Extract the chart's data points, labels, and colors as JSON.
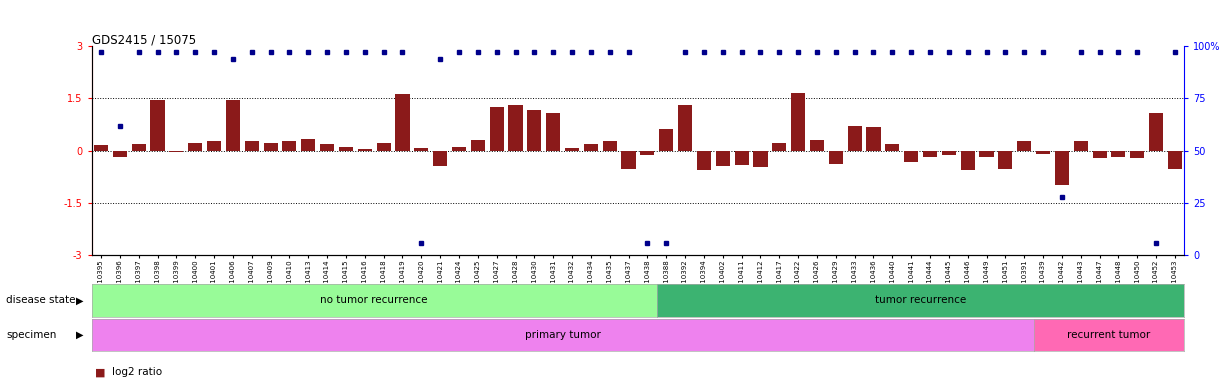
{
  "title": "GDS2415 / 15075",
  "samples": [
    "GSM110395",
    "GSM110396",
    "GSM110397",
    "GSM110398",
    "GSM110399",
    "GSM110400",
    "GSM110401",
    "GSM110406",
    "GSM110407",
    "GSM110409",
    "GSM110410",
    "GSM110413",
    "GSM110414",
    "GSM110415",
    "GSM110416",
    "GSM110418",
    "GSM110419",
    "GSM110420",
    "GSM110421",
    "GSM110424",
    "GSM110425",
    "GSM110427",
    "GSM110428",
    "GSM110430",
    "GSM110431",
    "GSM110432",
    "GSM110434",
    "GSM110435",
    "GSM110437",
    "GSM110438",
    "GSM110388",
    "GSM110392",
    "GSM110394",
    "GSM110402",
    "GSM110411",
    "GSM110412",
    "GSM110417",
    "GSM110422",
    "GSM110426",
    "GSM110429",
    "GSM110433",
    "GSM110436",
    "GSM110440",
    "GSM110441",
    "GSM110444",
    "GSM110445",
    "GSM110446",
    "GSM110449",
    "GSM110451",
    "GSM110391",
    "GSM110439",
    "GSM110442",
    "GSM110443",
    "GSM110447",
    "GSM110448",
    "GSM110450",
    "GSM110452",
    "GSM110453"
  ],
  "log2_ratio": [
    0.15,
    -0.18,
    0.18,
    1.45,
    -0.05,
    0.22,
    0.28,
    1.45,
    0.28,
    0.22,
    0.28,
    0.35,
    0.18,
    0.1,
    0.05,
    0.22,
    1.62,
    0.08,
    -0.45,
    0.1,
    0.32,
    1.25,
    1.3,
    1.18,
    1.08,
    0.08,
    0.18,
    0.28,
    -0.52,
    -0.12,
    0.62,
    1.32,
    -0.55,
    -0.45,
    -0.42,
    -0.48,
    0.22,
    1.65,
    0.32,
    -0.38,
    0.72,
    0.68,
    0.18,
    -0.32,
    -0.18,
    -0.12,
    -0.55,
    -0.18,
    -0.52,
    0.28,
    -0.08,
    -0.98,
    0.28,
    -0.22,
    -0.18,
    -0.22,
    1.08,
    -0.52
  ],
  "percentile_pct": [
    97,
    62,
    97,
    97,
    97,
    97,
    97,
    94,
    97,
    97,
    97,
    97,
    97,
    97,
    97,
    97,
    97,
    6,
    94,
    97,
    97,
    97,
    97,
    97,
    97,
    97,
    97,
    97,
    97,
    6,
    6,
    97,
    97,
    97,
    97,
    97,
    97,
    97,
    97,
    97,
    97,
    97,
    97,
    97,
    97,
    97,
    97,
    97,
    97,
    97,
    97,
    28,
    97,
    97,
    97,
    97,
    6,
    97
  ],
  "no_recurrence_count": 30,
  "primary_tumor_count": 50,
  "bar_color": "#8B1A1A",
  "point_color": "#00008B",
  "no_recurrence_color": "#98FB98",
  "recurrence_color": "#3CB371",
  "primary_color": "#EE82EE",
  "recurrent_color": "#FF69B4",
  "bg_color": "#ffffff",
  "ylim": [
    -3,
    3
  ],
  "y2lim": [
    0,
    100
  ],
  "hline_vals": [
    1.5,
    0.0,
    -1.5
  ]
}
